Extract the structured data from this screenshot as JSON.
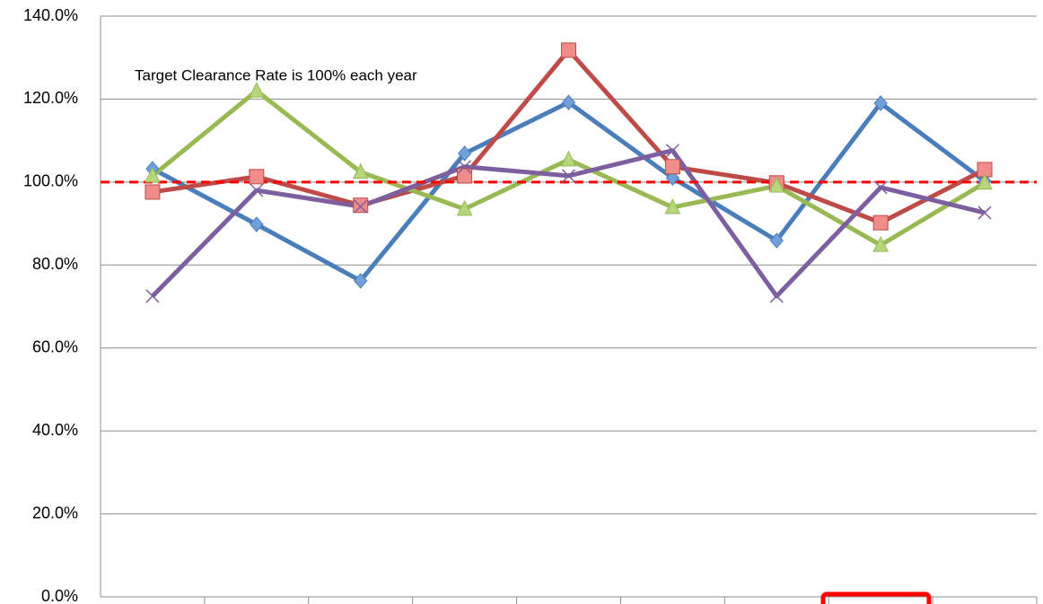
{
  "chart_data": {
    "type": "line",
    "annotation": "Target Clearance Rate is 100% each year",
    "categories": [
      null,
      null,
      null,
      null,
      null,
      null,
      null,
      null,
      null
    ],
    "series": [
      {
        "color": "#4a7ebb",
        "marker": "diamond",
        "values": [
          103.2,
          89.8,
          76.2,
          106.9,
          119.2,
          101.0,
          85.9,
          119.0,
          100.2
        ]
      },
      {
        "color": "#be4b48",
        "marker": "square",
        "values": [
          97.6,
          101.3,
          94.4,
          101.5,
          131.8,
          103.7,
          99.8,
          90.2,
          103.0
        ]
      },
      {
        "color": "#98b954",
        "marker": "triangle",
        "values": [
          101.5,
          122.0,
          102.4,
          93.5,
          105.4,
          93.9,
          99.1,
          84.8,
          99.8
        ]
      },
      {
        "color": "#7d5fa0",
        "marker": "x",
        "values": [
          72.5,
          98.0,
          94.1,
          103.7,
          101.5,
          107.6,
          72.5,
          98.7,
          92.6
        ]
      }
    ],
    "reference_line": {
      "value": 100,
      "color": "#ff0000"
    },
    "ylim": [
      0,
      140
    ],
    "yticks": [
      {
        "value": 0,
        "label": "0.0%"
      },
      {
        "value": 20,
        "label": "20.0%"
      },
      {
        "value": 40,
        "label": "40.0%"
      },
      {
        "value": 60,
        "label": "60.0%"
      },
      {
        "value": 80,
        "label": "80.0%"
      },
      {
        "value": 100,
        "label": "100.0%"
      },
      {
        "value": 120,
        "label": "120.0%"
      },
      {
        "value": 140,
        "label": "140.0%"
      }
    ],
    "grid": true
  }
}
